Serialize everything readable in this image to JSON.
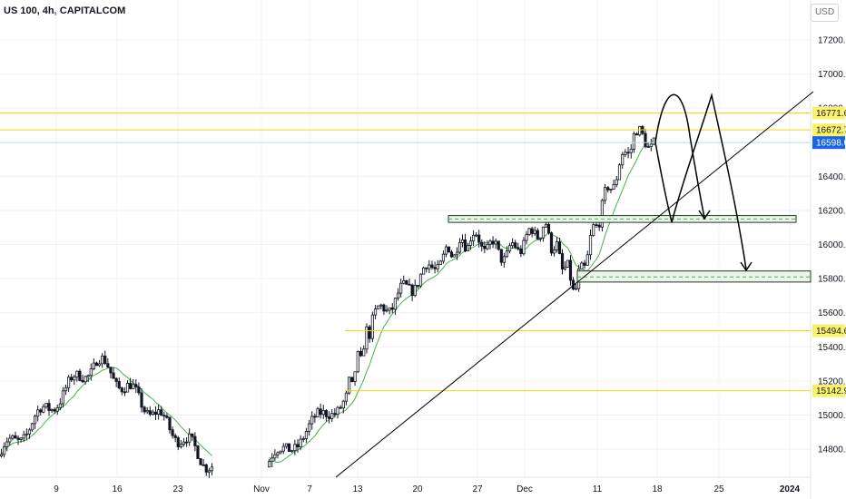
{
  "header": {
    "title": "US 100, 4h, CAPITALCOM",
    "currency": "USD"
  },
  "colors": {
    "up": "#26a69a",
    "down": "#ef5350",
    "candle": "#131722",
    "ma": "#4caf50",
    "level_line": "#f5d90a",
    "level_label_bg": "#fbf26b",
    "current_line": "#bcd6ee",
    "current_label_bg": "#1b64e8",
    "zone_fill": "#eaf4ea",
    "zone_border": "#1e3a1e",
    "trend_line": "#000000",
    "grid": "#eef0f3"
  },
  "chart_data": {
    "type": "candlestick",
    "symbol": "US 100",
    "interval": "4h",
    "source": "CAPITALCOM",
    "y_axis": {
      "ticks": [
        "17200.0",
        "17000.0",
        "16800.0",
        "16400.0",
        "16200.0",
        "16000.0",
        "15800.0",
        "15600.0",
        "15400.0",
        "15200.0",
        "15000.0",
        "14800.0"
      ],
      "tick_values": [
        17200,
        17000,
        16800,
        16400,
        16200,
        16000,
        15800,
        15600,
        15400,
        15200,
        15000,
        14800
      ],
      "ylim": [
        14660,
        17330
      ]
    },
    "x_axis": {
      "ticks": [
        "9",
        "16",
        "23",
        "Nov",
        "7",
        "13",
        "20",
        "27",
        "Dec",
        "11",
        "18",
        "25",
        "2024"
      ],
      "bold": [
        "2024"
      ]
    },
    "levels": [
      {
        "label": "16771.6",
        "value": 16771.6
      },
      {
        "label": "16672.7",
        "value": 16672.7
      },
      {
        "label": "15494.6",
        "value": 15494.6
      },
      {
        "label": "15142.9",
        "value": 15142.9
      }
    ],
    "current_price": {
      "label": "16598.0",
      "value": 16598.0
    },
    "zones": [
      {
        "top": 16170,
        "bottom": 16130,
        "mid": 16150
      },
      {
        "top": 15845,
        "bottom": 15780,
        "mid": 15810
      }
    ],
    "segments": [
      {
        "open": 14760,
        "close": 15320,
        "waves": 3
      },
      {
        "open": 15320,
        "close": 14700,
        "waves": 4
      },
      {
        "open": 14700,
        "close": 15110,
        "waves": 2
      },
      {
        "open": 15110,
        "close": 15560,
        "waves": 3
      },
      {
        "open": 15560,
        "close": 15930,
        "waves": 3
      },
      {
        "open": 15930,
        "close": 16040,
        "waves": 2
      },
      {
        "open": 16040,
        "close": 15940,
        "waves": 2
      },
      {
        "open": 15940,
        "close": 16110,
        "waves": 2
      },
      {
        "open": 16110,
        "close": 15740,
        "waves": 3
      },
      {
        "open": 15740,
        "close": 16230,
        "waves": 2
      },
      {
        "open": 16230,
        "close": 16640,
        "waves": 2
      },
      {
        "open": 16640,
        "close": 16598,
        "waves": 1
      }
    ]
  }
}
